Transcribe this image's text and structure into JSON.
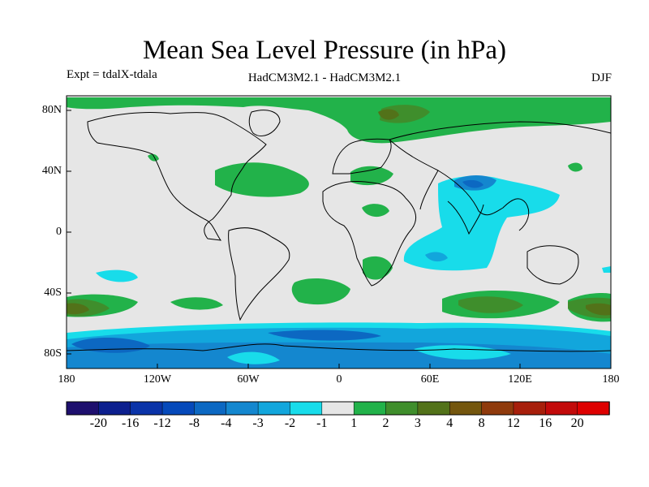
{
  "title": "Mean Sea Level Pressure (in hPa)",
  "experiment": "Expt = tdalX-tdala",
  "models": "HadCM3M2.1 - HadCM3M2.1",
  "season": "DJF",
  "map": {
    "projection": "equirectangular",
    "lon_range": [
      -180,
      180
    ],
    "lat_range": [
      -90,
      90
    ],
    "lat_ticks": [
      "80N",
      "40N",
      "0",
      "40S",
      "80S"
    ],
    "lon_ticks": [
      "180",
      "120W",
      "60W",
      "0",
      "60E",
      "120E",
      "180"
    ],
    "background_color": "#e6e6e6",
    "coastline_color": "#000000"
  },
  "colorbar": {
    "labels": [
      "-20",
      "-16",
      "-12",
      "-8",
      "-4",
      "-3",
      "-2",
      "-1",
      "1",
      "2",
      "3",
      "4",
      "8",
      "12",
      "16",
      "20"
    ],
    "colors": [
      "#1e0f6e",
      "#0c1f8e",
      "#0a33a8",
      "#0549ba",
      "#0c68c2",
      "#1487cf",
      "#12a6dc",
      "#18dcea",
      "#e6e6e6",
      "#22b24a",
      "#3f8e2c",
      "#527219",
      "#74560e",
      "#8f3a0c",
      "#a71f0b",
      "#c20a0a",
      "#de0000"
    ]
  }
}
